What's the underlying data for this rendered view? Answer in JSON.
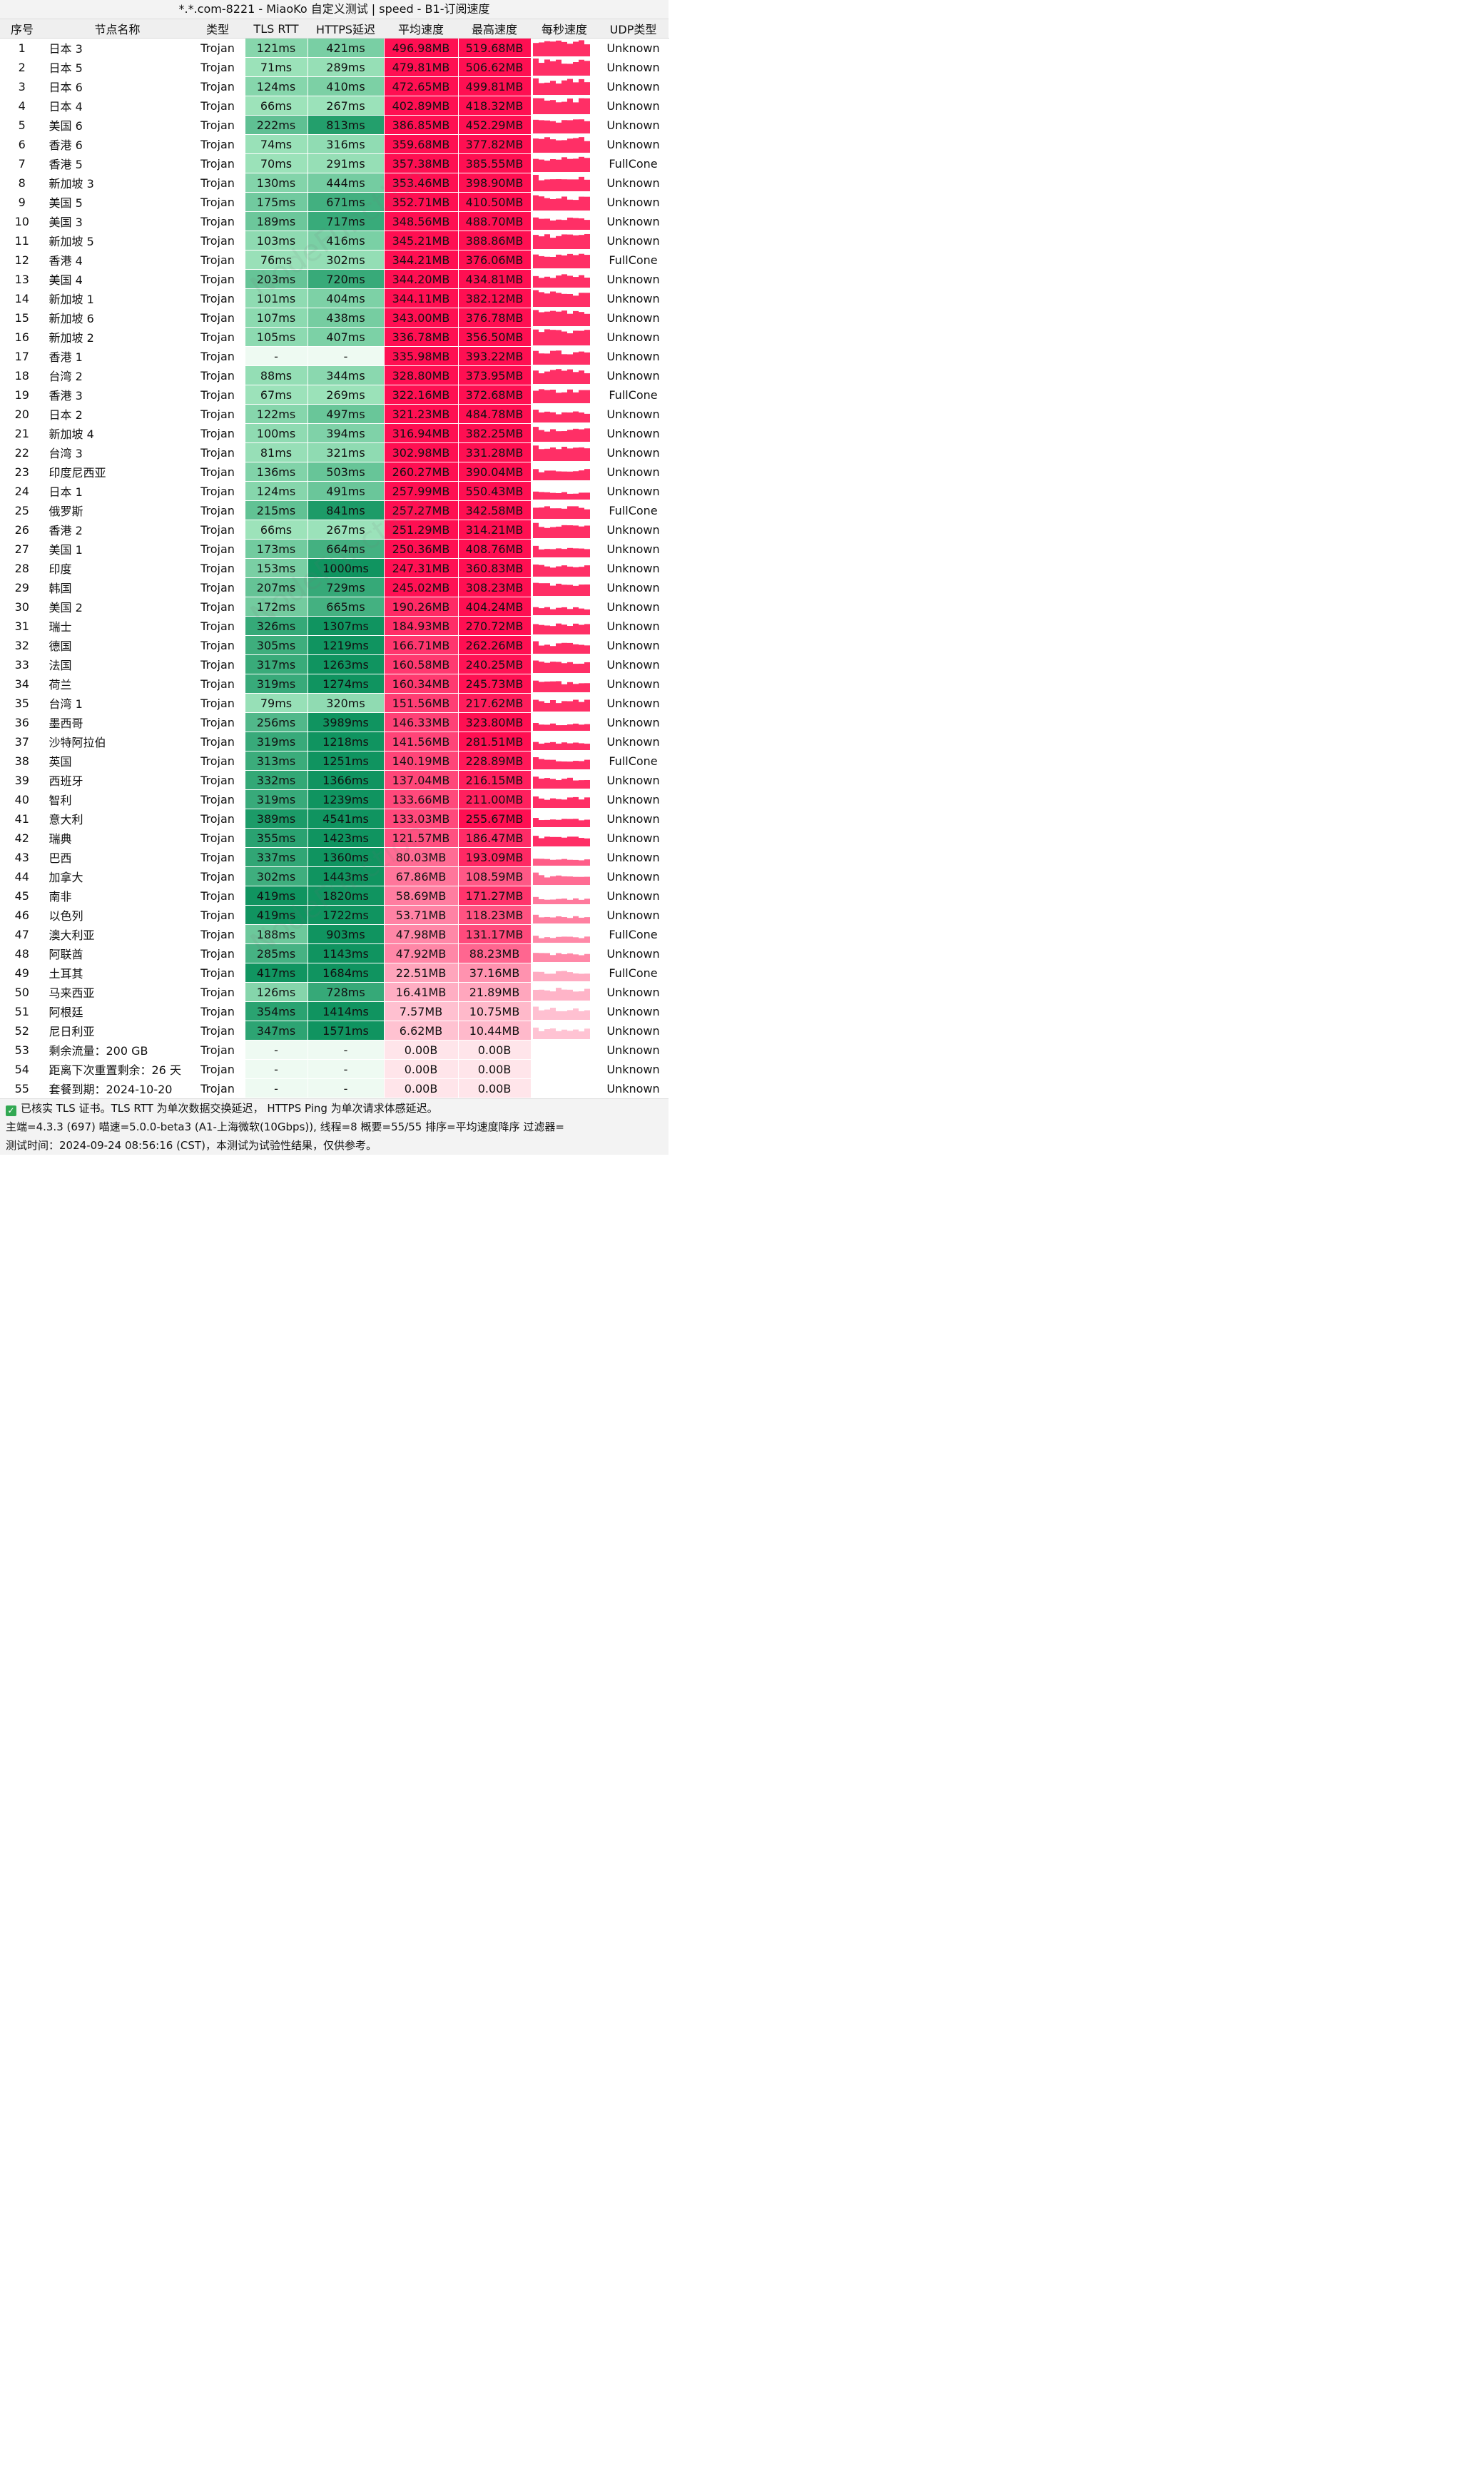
{
  "title": "*.*.com-8221 - MiaoKo 自定义测试 | speed - B1-订阅速度",
  "columns": [
    "序号",
    "节点名称",
    "类型",
    "TLS RTT",
    "HTTPS延迟",
    "平均速度",
    "最高速度",
    "每秒速度",
    "UDP类型"
  ],
  "colors": {
    "speed_max": "#ff0f52",
    "speed_min": "#ffe5ea",
    "rtt_max": "#109460",
    "rtt_min": "#9fe4bc",
    "empty_latency": "#eefaf2",
    "spark": "#ff2f66",
    "check": "#32a852"
  },
  "rows": [
    {
      "idx": "1",
      "name": "日本 3",
      "type": "Trojan",
      "tls": "121ms",
      "https": "421ms",
      "avg": "496.98MB",
      "max": "519.68MB",
      "udp": "Unknown"
    },
    {
      "idx": "2",
      "name": "日本 5",
      "type": "Trojan",
      "tls": "71ms",
      "https": "289ms",
      "avg": "479.81MB",
      "max": "506.62MB",
      "udp": "Unknown"
    },
    {
      "idx": "3",
      "name": "日本 6",
      "type": "Trojan",
      "tls": "124ms",
      "https": "410ms",
      "avg": "472.65MB",
      "max": "499.81MB",
      "udp": "Unknown"
    },
    {
      "idx": "4",
      "name": "日本 4",
      "type": "Trojan",
      "tls": "66ms",
      "https": "267ms",
      "avg": "402.89MB",
      "max": "418.32MB",
      "udp": "Unknown"
    },
    {
      "idx": "5",
      "name": "美国 6",
      "type": "Trojan",
      "tls": "222ms",
      "https": "813ms",
      "avg": "386.85MB",
      "max": "452.29MB",
      "udp": "Unknown"
    },
    {
      "idx": "6",
      "name": "香港 6",
      "type": "Trojan",
      "tls": "74ms",
      "https": "316ms",
      "avg": "359.68MB",
      "max": "377.82MB",
      "udp": "Unknown"
    },
    {
      "idx": "7",
      "name": "香港 5",
      "type": "Trojan",
      "tls": "70ms",
      "https": "291ms",
      "avg": "357.38MB",
      "max": "385.55MB",
      "udp": "FullCone"
    },
    {
      "idx": "8",
      "name": "新加坡 3",
      "type": "Trojan",
      "tls": "130ms",
      "https": "444ms",
      "avg": "353.46MB",
      "max": "398.90MB",
      "udp": "Unknown"
    },
    {
      "idx": "9",
      "name": "美国 5",
      "type": "Trojan",
      "tls": "175ms",
      "https": "671ms",
      "avg": "352.71MB",
      "max": "410.50MB",
      "udp": "Unknown"
    },
    {
      "idx": "10",
      "name": "美国 3",
      "type": "Trojan",
      "tls": "189ms",
      "https": "717ms",
      "avg": "348.56MB",
      "max": "488.70MB",
      "udp": "Unknown"
    },
    {
      "idx": "11",
      "name": "新加坡 5",
      "type": "Trojan",
      "tls": "103ms",
      "https": "416ms",
      "avg": "345.21MB",
      "max": "388.86MB",
      "udp": "Unknown"
    },
    {
      "idx": "12",
      "name": "香港 4",
      "type": "Trojan",
      "tls": "76ms",
      "https": "302ms",
      "avg": "344.21MB",
      "max": "376.06MB",
      "udp": "FullCone"
    },
    {
      "idx": "13",
      "name": "美国 4",
      "type": "Trojan",
      "tls": "203ms",
      "https": "720ms",
      "avg": "344.20MB",
      "max": "434.81MB",
      "udp": "Unknown"
    },
    {
      "idx": "14",
      "name": "新加坡 1",
      "type": "Trojan",
      "tls": "101ms",
      "https": "404ms",
      "avg": "344.11MB",
      "max": "382.12MB",
      "udp": "Unknown"
    },
    {
      "idx": "15",
      "name": "新加坡 6",
      "type": "Trojan",
      "tls": "107ms",
      "https": "438ms",
      "avg": "343.00MB",
      "max": "376.78MB",
      "udp": "Unknown"
    },
    {
      "idx": "16",
      "name": "新加坡 2",
      "type": "Trojan",
      "tls": "105ms",
      "https": "407ms",
      "avg": "336.78MB",
      "max": "356.50MB",
      "udp": "Unknown"
    },
    {
      "idx": "17",
      "name": "香港 1",
      "type": "Trojan",
      "tls": "-",
      "https": "-",
      "avg": "335.98MB",
      "max": "393.22MB",
      "udp": "Unknown"
    },
    {
      "idx": "18",
      "name": "台湾 2",
      "type": "Trojan",
      "tls": "88ms",
      "https": "344ms",
      "avg": "328.80MB",
      "max": "373.95MB",
      "udp": "Unknown"
    },
    {
      "idx": "19",
      "name": "香港 3",
      "type": "Trojan",
      "tls": "67ms",
      "https": "269ms",
      "avg": "322.16MB",
      "max": "372.68MB",
      "udp": "FullCone"
    },
    {
      "idx": "20",
      "name": "日本 2",
      "type": "Trojan",
      "tls": "122ms",
      "https": "497ms",
      "avg": "321.23MB",
      "max": "484.78MB",
      "udp": "Unknown"
    },
    {
      "idx": "21",
      "name": "新加坡 4",
      "type": "Trojan",
      "tls": "100ms",
      "https": "394ms",
      "avg": "316.94MB",
      "max": "382.25MB",
      "udp": "Unknown"
    },
    {
      "idx": "22",
      "name": "台湾 3",
      "type": "Trojan",
      "tls": "81ms",
      "https": "321ms",
      "avg": "302.98MB",
      "max": "331.28MB",
      "udp": "Unknown"
    },
    {
      "idx": "23",
      "name": "印度尼西亚",
      "type": "Trojan",
      "tls": "136ms",
      "https": "503ms",
      "avg": "260.27MB",
      "max": "390.04MB",
      "udp": "Unknown"
    },
    {
      "idx": "24",
      "name": "日本 1",
      "type": "Trojan",
      "tls": "124ms",
      "https": "491ms",
      "avg": "257.99MB",
      "max": "550.43MB",
      "udp": "Unknown"
    },
    {
      "idx": "25",
      "name": "俄罗斯",
      "type": "Trojan",
      "tls": "215ms",
      "https": "841ms",
      "avg": "257.27MB",
      "max": "342.58MB",
      "udp": "FullCone"
    },
    {
      "idx": "26",
      "name": "香港 2",
      "type": "Trojan",
      "tls": "66ms",
      "https": "267ms",
      "avg": "251.29MB",
      "max": "314.21MB",
      "udp": "Unknown"
    },
    {
      "idx": "27",
      "name": "美国 1",
      "type": "Trojan",
      "tls": "173ms",
      "https": "664ms",
      "avg": "250.36MB",
      "max": "408.76MB",
      "udp": "Unknown"
    },
    {
      "idx": "28",
      "name": "印度",
      "type": "Trojan",
      "tls": "153ms",
      "https": "1000ms",
      "avg": "247.31MB",
      "max": "360.83MB",
      "udp": "Unknown"
    },
    {
      "idx": "29",
      "name": "韩国",
      "type": "Trojan",
      "tls": "207ms",
      "https": "729ms",
      "avg": "245.02MB",
      "max": "308.23MB",
      "udp": "Unknown"
    },
    {
      "idx": "30",
      "name": "美国 2",
      "type": "Trojan",
      "tls": "172ms",
      "https": "665ms",
      "avg": "190.26MB",
      "max": "404.24MB",
      "udp": "Unknown"
    },
    {
      "idx": "31",
      "name": "瑞士",
      "type": "Trojan",
      "tls": "326ms",
      "https": "1307ms",
      "avg": "184.93MB",
      "max": "270.72MB",
      "udp": "Unknown"
    },
    {
      "idx": "32",
      "name": "德国",
      "type": "Trojan",
      "tls": "305ms",
      "https": "1219ms",
      "avg": "166.71MB",
      "max": "262.26MB",
      "udp": "Unknown"
    },
    {
      "idx": "33",
      "name": "法国",
      "type": "Trojan",
      "tls": "317ms",
      "https": "1263ms",
      "avg": "160.58MB",
      "max": "240.25MB",
      "udp": "Unknown"
    },
    {
      "idx": "34",
      "name": "荷兰",
      "type": "Trojan",
      "tls": "319ms",
      "https": "1274ms",
      "avg": "160.34MB",
      "max": "245.73MB",
      "udp": "Unknown"
    },
    {
      "idx": "35",
      "name": "台湾 1",
      "type": "Trojan",
      "tls": "79ms",
      "https": "320ms",
      "avg": "151.56MB",
      "max": "217.62MB",
      "udp": "Unknown"
    },
    {
      "idx": "36",
      "name": "墨西哥",
      "type": "Trojan",
      "tls": "256ms",
      "https": "3989ms",
      "avg": "146.33MB",
      "max": "323.80MB",
      "udp": "Unknown"
    },
    {
      "idx": "37",
      "name": "沙特阿拉伯",
      "type": "Trojan",
      "tls": "319ms",
      "https": "1218ms",
      "avg": "141.56MB",
      "max": "281.51MB",
      "udp": "Unknown"
    },
    {
      "idx": "38",
      "name": "英国",
      "type": "Trojan",
      "tls": "313ms",
      "https": "1251ms",
      "avg": "140.19MB",
      "max": "228.89MB",
      "udp": "FullCone"
    },
    {
      "idx": "39",
      "name": "西班牙",
      "type": "Trojan",
      "tls": "332ms",
      "https": "1366ms",
      "avg": "137.04MB",
      "max": "216.15MB",
      "udp": "Unknown"
    },
    {
      "idx": "40",
      "name": "智利",
      "type": "Trojan",
      "tls": "319ms",
      "https": "1239ms",
      "avg": "133.66MB",
      "max": "211.00MB",
      "udp": "Unknown"
    },
    {
      "idx": "41",
      "name": "意大利",
      "type": "Trojan",
      "tls": "389ms",
      "https": "4541ms",
      "avg": "133.03MB",
      "max": "255.67MB",
      "udp": "Unknown"
    },
    {
      "idx": "42",
      "name": "瑞典",
      "type": "Trojan",
      "tls": "355ms",
      "https": "1423ms",
      "avg": "121.57MB",
      "max": "186.47MB",
      "udp": "Unknown"
    },
    {
      "idx": "43",
      "name": "巴西",
      "type": "Trojan",
      "tls": "337ms",
      "https": "1360ms",
      "avg": "80.03MB",
      "max": "193.09MB",
      "udp": "Unknown"
    },
    {
      "idx": "44",
      "name": "加拿大",
      "type": "Trojan",
      "tls": "302ms",
      "https": "1443ms",
      "avg": "67.86MB",
      "max": "108.59MB",
      "udp": "Unknown"
    },
    {
      "idx": "45",
      "name": "南非",
      "type": "Trojan",
      "tls": "419ms",
      "https": "1820ms",
      "avg": "58.69MB",
      "max": "171.27MB",
      "udp": "Unknown"
    },
    {
      "idx": "46",
      "name": "以色列",
      "type": "Trojan",
      "tls": "419ms",
      "https": "1722ms",
      "avg": "53.71MB",
      "max": "118.23MB",
      "udp": "Unknown"
    },
    {
      "idx": "47",
      "name": "澳大利亚",
      "type": "Trojan",
      "tls": "188ms",
      "https": "903ms",
      "avg": "47.98MB",
      "max": "131.17MB",
      "udp": "FullCone"
    },
    {
      "idx": "48",
      "name": "阿联酋",
      "type": "Trojan",
      "tls": "285ms",
      "https": "1143ms",
      "avg": "47.92MB",
      "max": "88.23MB",
      "udp": "Unknown"
    },
    {
      "idx": "49",
      "name": "土耳其",
      "type": "Trojan",
      "tls": "417ms",
      "https": "1684ms",
      "avg": "22.51MB",
      "max": "37.16MB",
      "udp": "FullCone"
    },
    {
      "idx": "50",
      "name": "马来西亚",
      "type": "Trojan",
      "tls": "126ms",
      "https": "728ms",
      "avg": "16.41MB",
      "max": "21.89MB",
      "udp": "Unknown"
    },
    {
      "idx": "51",
      "name": "阿根廷",
      "type": "Trojan",
      "tls": "354ms",
      "https": "1414ms",
      "avg": "7.57MB",
      "max": "10.75MB",
      "udp": "Unknown"
    },
    {
      "idx": "52",
      "name": "尼日利亚",
      "type": "Trojan",
      "tls": "347ms",
      "https": "1571ms",
      "avg": "6.62MB",
      "max": "10.44MB",
      "udp": "Unknown"
    },
    {
      "idx": "53",
      "name": "剩余流量：200 GB",
      "type": "Trojan",
      "tls": "-",
      "https": "-",
      "avg": "0.00B",
      "max": "0.00B",
      "udp": "Unknown"
    },
    {
      "idx": "54",
      "name": "距离下次重置剩余：26 天",
      "type": "Trojan",
      "tls": "-",
      "https": "-",
      "avg": "0.00B",
      "max": "0.00B",
      "udp": "Unknown"
    },
    {
      "idx": "55",
      "name": "套餐到期：2024-10-20",
      "type": "Trojan",
      "tls": "-",
      "https": "-",
      "avg": "0.00B",
      "max": "0.00B",
      "udp": "Unknown"
    }
  ],
  "footer": {
    "line1": "已核实 TLS 证书。TLS RTT 为单次数据交换延迟， HTTPS Ping 为单次请求体感延迟。",
    "line2": "主端=4.3.3 (697) 喵速=5.0.0-beta3 (A1-上海微软(10Gbps)), 线程=8 概要=55/55 排序=平均速度降序 过滤器=",
    "line3": "测试时间：2024-09-24 08:56:16 (CST)，本测试为试验性结果，仅供参考。"
  }
}
